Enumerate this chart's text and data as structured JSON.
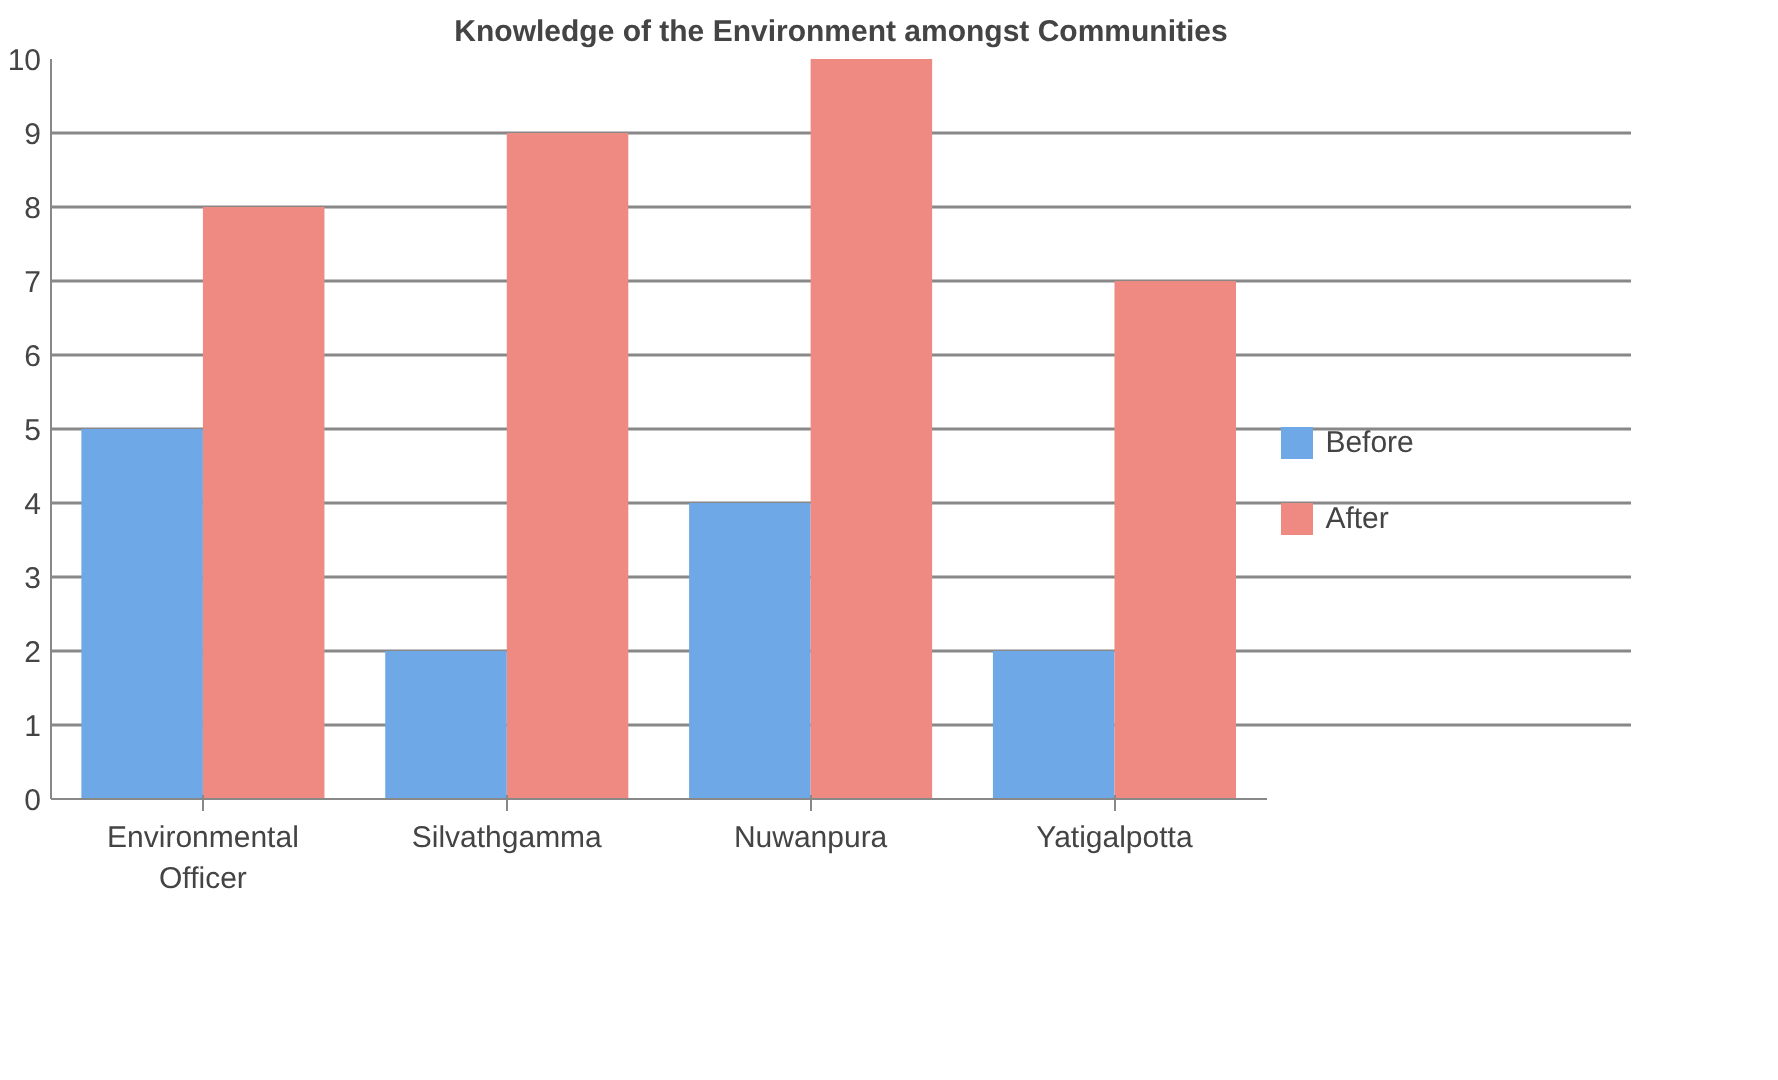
{
  "chart_data": {
    "type": "bar",
    "title": "Knowledge of the Environment amongst Communities",
    "categories": [
      "Environmental Officer",
      "Silvathgamma",
      "Nuwanpura",
      "Yatigalpotta"
    ],
    "series": [
      {
        "name": "Before",
        "color": "#6fa8e6",
        "values": [
          5,
          2,
          4,
          2
        ]
      },
      {
        "name": "After",
        "color": "#ef8a82",
        "values": [
          8,
          9,
          10,
          7
        ]
      }
    ],
    "ylim": [
      0,
      10
    ],
    "yticks": [
      0,
      1,
      2,
      3,
      4,
      5,
      6,
      7,
      8,
      9,
      10
    ],
    "grid": "y",
    "legend": "right"
  }
}
